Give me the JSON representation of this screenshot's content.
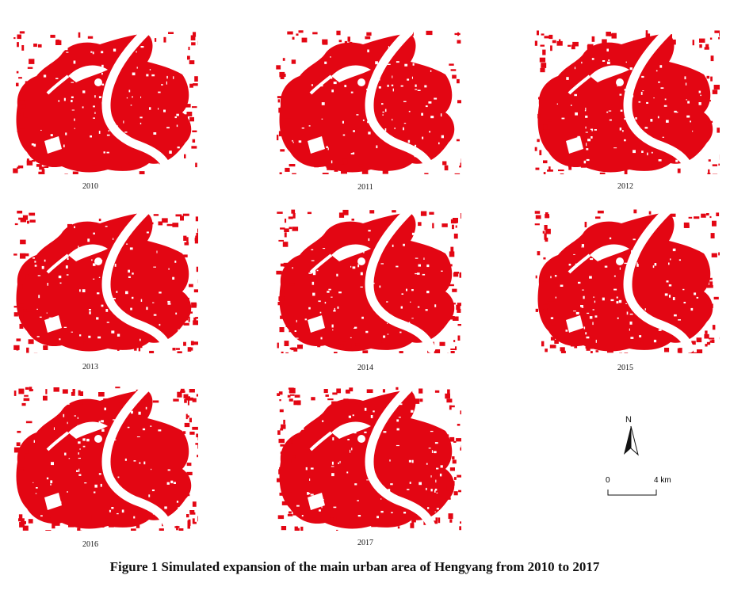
{
  "caption": "Figure 1  Simulated expansion of the main urban area of Hengyang from 2010 to 2017",
  "panels": [
    {
      "year": "2010"
    },
    {
      "year": "2011"
    },
    {
      "year": "2012"
    },
    {
      "year": "2013"
    },
    {
      "year": "2014"
    },
    {
      "year": "2015"
    },
    {
      "year": "2016"
    },
    {
      "year": "2017"
    }
  ],
  "north_arrow": {
    "label": "N"
  },
  "scale_bar": {
    "start": "0",
    "end": "4 km"
  },
  "colors": {
    "urban": "#e30613",
    "river": "#ffffff",
    "background": "#ffffff"
  }
}
